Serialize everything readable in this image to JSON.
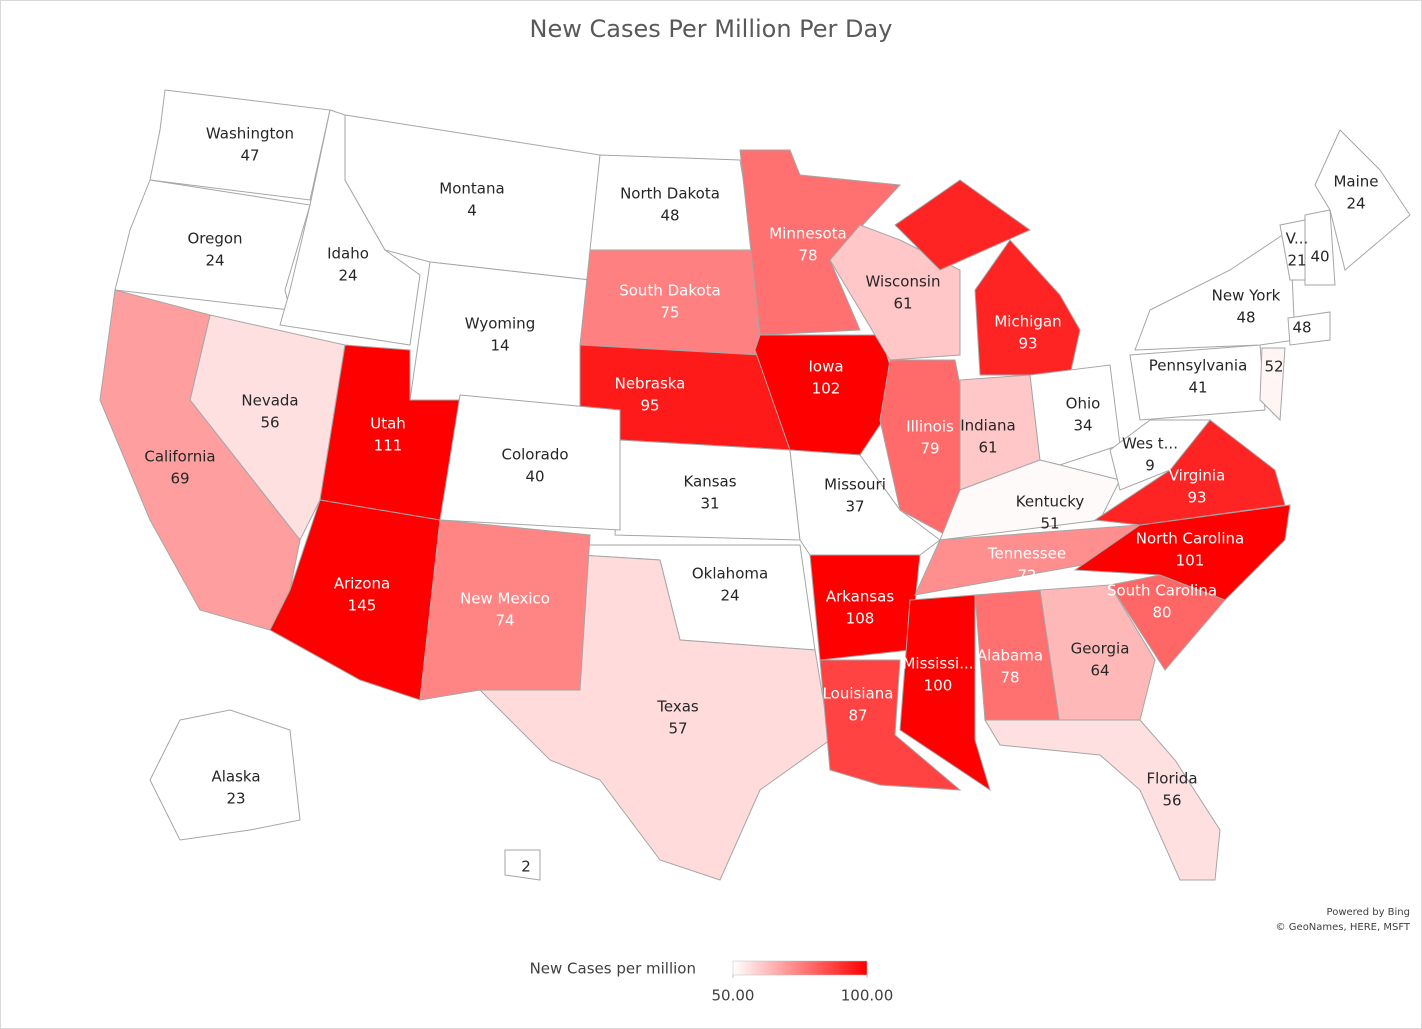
{
  "chart_data": {
    "type": "choropleth",
    "title": "New Cases Per Million Per Day",
    "regions": [
      {
        "name": "Washington",
        "value": 47
      },
      {
        "name": "Oregon",
        "value": 24
      },
      {
        "name": "Idaho",
        "value": 24
      },
      {
        "name": "Montana",
        "value": 4
      },
      {
        "name": "Wyoming",
        "value": 14
      },
      {
        "name": "North Dakota",
        "value": 48
      },
      {
        "name": "South Dakota",
        "value": 75
      },
      {
        "name": "Nebraska",
        "value": 95
      },
      {
        "name": "Kansas",
        "value": 31
      },
      {
        "name": "Oklahoma",
        "value": 24
      },
      {
        "name": "Texas",
        "value": 57
      },
      {
        "name": "Nevada",
        "value": 56
      },
      {
        "name": "California",
        "value": 69
      },
      {
        "name": "Utah",
        "value": 111
      },
      {
        "name": "Arizona",
        "value": 145
      },
      {
        "name": "Colorado",
        "value": 40
      },
      {
        "name": "New Mexico",
        "value": 74
      },
      {
        "name": "Minnesota",
        "value": 78
      },
      {
        "name": "Iowa",
        "value": 102
      },
      {
        "name": "Missouri",
        "value": 37
      },
      {
        "name": "Arkansas",
        "value": 108
      },
      {
        "name": "Louisiana",
        "value": 87
      },
      {
        "name": "Mississi...",
        "value": 100
      },
      {
        "name": "Wisconsin",
        "value": 61
      },
      {
        "name": "Illinois",
        "value": 79
      },
      {
        "name": "Michigan",
        "value": 93
      },
      {
        "name": "Indiana",
        "value": 61
      },
      {
        "name": "Ohio",
        "value": 34
      },
      {
        "name": "Kentucky",
        "value": 51
      },
      {
        "name": "Tennessee",
        "value": 72
      },
      {
        "name": "Alabama",
        "value": 78
      },
      {
        "name": "Georgia",
        "value": 64
      },
      {
        "name": "Florida",
        "value": 56
      },
      {
        "name": "South Carolina",
        "value": 80
      },
      {
        "name": "North Carolina",
        "value": 101
      },
      {
        "name": "Virginia",
        "value": 93
      },
      {
        "name": "Wes t...",
        "value": 9
      },
      {
        "name": "Pennsylvania",
        "value": 41
      },
      {
        "name": "New York",
        "value": 48
      },
      {
        "name": "V...",
        "value": 21
      },
      {
        "name": null,
        "value": 40
      },
      {
        "name": "Maine",
        "value": 24
      },
      {
        "name": null,
        "value": 48
      },
      {
        "name": null,
        "value": 52
      },
      {
        "name": "Alaska",
        "value": 23
      },
      {
        "name": null,
        "value": 2
      }
    ],
    "legend_title": "New Cases per million",
    "legend_ticks": [
      {
        "value": 50,
        "label": "50.00"
      },
      {
        "value": 100,
        "label": "100.00"
      }
    ],
    "color_min": "#ffffff",
    "color_max": "#ff0000",
    "attribution": [
      "Powered by Bing",
      "© GeoNames, HERE, MSFT"
    ]
  }
}
